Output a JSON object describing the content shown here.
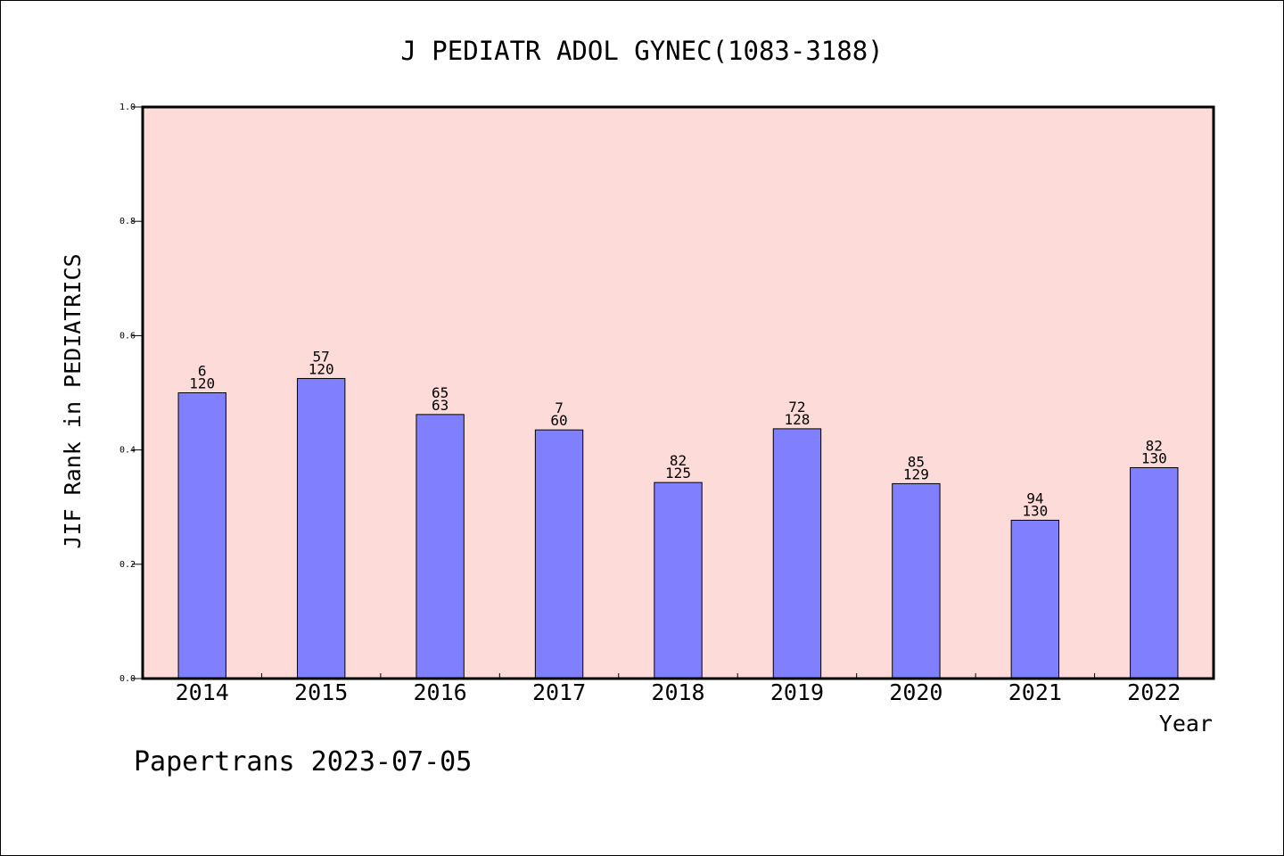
{
  "chart_data": {
    "type": "bar",
    "title": "J PEDIATR ADOL GYNEC(1083-3188)",
    "xlabel": "Year",
    "ylabel": "JIF Rank in PEDIATRICS",
    "ylim": [
      0.0,
      1.0
    ],
    "yticks": [
      "0.0",
      "0.2",
      "0.4",
      "0.6",
      "0.8",
      "1.0"
    ],
    "categories": [
      "2014",
      "2015",
      "2016",
      "2017",
      "2018",
      "2019",
      "2020",
      "2021",
      "2022"
    ],
    "values": [
      0.5,
      0.525,
      0.462,
      0.435,
      0.343,
      0.437,
      0.341,
      0.277,
      0.369
    ],
    "labels_top": [
      "6",
      "57",
      "65",
      "7",
      "82",
      "72",
      "85",
      "94",
      "82"
    ],
    "labels_bottom": [
      "120",
      "120",
      "63",
      "60",
      "125",
      "128",
      "129",
      "130",
      "130"
    ],
    "grid": false,
    "legend": "none",
    "colors": {
      "plot_bg": "#fddbd8",
      "bar": "#8080ff",
      "bar_stroke": "#000000"
    }
  },
  "footer": {
    "text": "Papertrans 2023-07-05"
  }
}
